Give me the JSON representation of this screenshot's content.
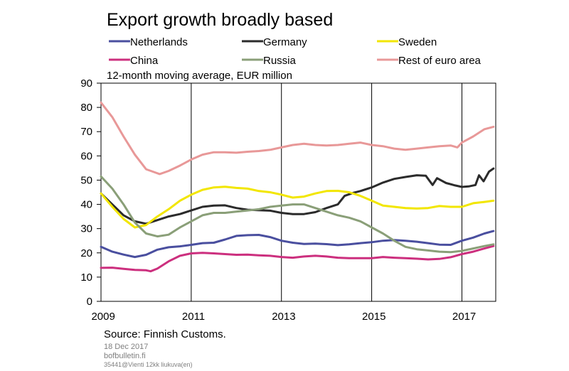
{
  "header": {
    "title": "Export growth broadly based",
    "subtitle": "12-month moving average, EUR million"
  },
  "footer": {
    "source": "Source: Finnish Customs.",
    "date": "18 Dec 2017",
    "site": "bofbulletin.fi",
    "file_id": "35441@Vienti 12kk liukuva(en)"
  },
  "chart_data": {
    "type": "line",
    "title": "Export growth broadly based",
    "subtitle": "12-month moving average, EUR million",
    "xlabel": "",
    "ylabel": "",
    "x_ticks": [
      "2009",
      "2011",
      "2013",
      "2015",
      "2017"
    ],
    "y_ticks": [
      "0",
      "10",
      "20",
      "30",
      "40",
      "50",
      "60",
      "70",
      "80",
      "90"
    ],
    "xlim": [
      2009.0,
      2017.75
    ],
    "ylim": [
      0,
      90
    ],
    "grid": "vertical",
    "legend_position": "top",
    "series": [
      {
        "name": "Netherlands",
        "color": "#4a4f9f",
        "points": [
          [
            2009.0,
            22.5
          ],
          [
            2009.25,
            20.5
          ],
          [
            2009.5,
            19.3
          ],
          [
            2009.75,
            18.3
          ],
          [
            2010.0,
            19.2
          ],
          [
            2010.25,
            21.3
          ],
          [
            2010.5,
            22.3
          ],
          [
            2010.75,
            22.7
          ],
          [
            2011.0,
            23.3
          ],
          [
            2011.25,
            24.0
          ],
          [
            2011.5,
            24.2
          ],
          [
            2011.75,
            25.5
          ],
          [
            2012.0,
            27.0
          ],
          [
            2012.25,
            27.3
          ],
          [
            2012.5,
            27.4
          ],
          [
            2012.75,
            26.5
          ],
          [
            2013.0,
            25.0
          ],
          [
            2013.25,
            24.2
          ],
          [
            2013.5,
            23.7
          ],
          [
            2013.75,
            23.8
          ],
          [
            2014.0,
            23.6
          ],
          [
            2014.25,
            23.2
          ],
          [
            2014.5,
            23.5
          ],
          [
            2014.75,
            24.0
          ],
          [
            2015.0,
            24.4
          ],
          [
            2015.25,
            25.0
          ],
          [
            2015.5,
            25.3
          ],
          [
            2015.75,
            25.0
          ],
          [
            2016.0,
            24.6
          ],
          [
            2016.25,
            24.0
          ],
          [
            2016.5,
            23.4
          ],
          [
            2016.75,
            23.3
          ],
          [
            2017.0,
            25.0
          ],
          [
            2017.25,
            26.3
          ],
          [
            2017.5,
            28.0
          ],
          [
            2017.7,
            29.0
          ]
        ]
      },
      {
        "name": "Germany",
        "color": "#2b2b2b",
        "points": [
          [
            2009.0,
            44.5
          ],
          [
            2009.25,
            40.0
          ],
          [
            2009.5,
            35.5
          ],
          [
            2009.75,
            33.0
          ],
          [
            2010.0,
            32.0
          ],
          [
            2010.25,
            33.5
          ],
          [
            2010.5,
            35.0
          ],
          [
            2010.75,
            36.0
          ],
          [
            2011.0,
            37.5
          ],
          [
            2011.25,
            39.0
          ],
          [
            2011.5,
            39.5
          ],
          [
            2011.75,
            39.6
          ],
          [
            2012.0,
            38.5
          ],
          [
            2012.25,
            37.8
          ],
          [
            2012.5,
            37.6
          ],
          [
            2012.75,
            37.4
          ],
          [
            2013.0,
            36.5
          ],
          [
            2013.25,
            36.0
          ],
          [
            2013.5,
            36.0
          ],
          [
            2013.75,
            36.8
          ],
          [
            2014.0,
            38.5
          ],
          [
            2014.25,
            40.0
          ],
          [
            2014.4,
            43.5
          ],
          [
            2014.6,
            44.8
          ],
          [
            2014.75,
            45.5
          ],
          [
            2015.0,
            47.0
          ],
          [
            2015.25,
            49.0
          ],
          [
            2015.5,
            50.5
          ],
          [
            2015.75,
            51.3
          ],
          [
            2016.0,
            52.0
          ],
          [
            2016.2,
            51.8
          ],
          [
            2016.35,
            48.0
          ],
          [
            2016.45,
            50.8
          ],
          [
            2016.65,
            48.8
          ],
          [
            2016.85,
            47.8
          ],
          [
            2017.0,
            47.2
          ],
          [
            2017.15,
            47.4
          ],
          [
            2017.3,
            48.0
          ],
          [
            2017.38,
            52.0
          ],
          [
            2017.48,
            49.5
          ],
          [
            2017.6,
            53.5
          ],
          [
            2017.7,
            54.8
          ]
        ]
      },
      {
        "name": "Sweden",
        "color": "#f2e600",
        "points": [
          [
            2009.0,
            44.5
          ],
          [
            2009.25,
            39.0
          ],
          [
            2009.5,
            34.0
          ],
          [
            2009.75,
            30.5
          ],
          [
            2010.0,
            31.5
          ],
          [
            2010.25,
            35.0
          ],
          [
            2010.5,
            38.0
          ],
          [
            2010.75,
            41.5
          ],
          [
            2011.0,
            44.0
          ],
          [
            2011.25,
            46.0
          ],
          [
            2011.5,
            47.0
          ],
          [
            2011.75,
            47.3
          ],
          [
            2012.0,
            46.8
          ],
          [
            2012.25,
            46.5
          ],
          [
            2012.5,
            45.5
          ],
          [
            2012.75,
            45.0
          ],
          [
            2013.0,
            44.0
          ],
          [
            2013.25,
            42.8
          ],
          [
            2013.5,
            43.2
          ],
          [
            2013.75,
            44.5
          ],
          [
            2014.0,
            45.5
          ],
          [
            2014.25,
            45.6
          ],
          [
            2014.5,
            45.0
          ],
          [
            2014.75,
            43.5
          ],
          [
            2015.0,
            41.5
          ],
          [
            2015.25,
            39.5
          ],
          [
            2015.5,
            39.0
          ],
          [
            2015.75,
            38.5
          ],
          [
            2016.0,
            38.3
          ],
          [
            2016.25,
            38.5
          ],
          [
            2016.5,
            39.3
          ],
          [
            2016.75,
            39.0
          ],
          [
            2017.0,
            39.0
          ],
          [
            2017.25,
            40.5
          ],
          [
            2017.5,
            41.0
          ],
          [
            2017.7,
            41.5
          ]
        ]
      },
      {
        "name": "China",
        "color": "#cc2f7e",
        "points": [
          [
            2009.0,
            13.8
          ],
          [
            2009.25,
            13.9
          ],
          [
            2009.5,
            13.4
          ],
          [
            2009.75,
            13.0
          ],
          [
            2010.0,
            12.8
          ],
          [
            2010.1,
            12.4
          ],
          [
            2010.25,
            13.5
          ],
          [
            2010.5,
            16.5
          ],
          [
            2010.75,
            18.8
          ],
          [
            2011.0,
            19.8
          ],
          [
            2011.25,
            20.0
          ],
          [
            2011.5,
            19.8
          ],
          [
            2011.75,
            19.5
          ],
          [
            2012.0,
            19.2
          ],
          [
            2012.25,
            19.3
          ],
          [
            2012.5,
            19.0
          ],
          [
            2012.75,
            18.8
          ],
          [
            2013.0,
            18.3
          ],
          [
            2013.25,
            18.0
          ],
          [
            2013.5,
            18.5
          ],
          [
            2013.75,
            18.8
          ],
          [
            2014.0,
            18.5
          ],
          [
            2014.25,
            18.0
          ],
          [
            2014.5,
            17.8
          ],
          [
            2014.75,
            17.8
          ],
          [
            2015.0,
            17.8
          ],
          [
            2015.25,
            18.3
          ],
          [
            2015.5,
            18.0
          ],
          [
            2015.75,
            17.8
          ],
          [
            2016.0,
            17.6
          ],
          [
            2016.25,
            17.3
          ],
          [
            2016.5,
            17.5
          ],
          [
            2016.75,
            18.2
          ],
          [
            2017.0,
            19.5
          ],
          [
            2017.25,
            20.5
          ],
          [
            2017.5,
            21.8
          ],
          [
            2017.7,
            22.8
          ]
        ]
      },
      {
        "name": "Russia",
        "color": "#8a9f78",
        "points": [
          [
            2009.0,
            51.5
          ],
          [
            2009.25,
            46.5
          ],
          [
            2009.5,
            40.0
          ],
          [
            2009.75,
            32.5
          ],
          [
            2010.0,
            28.0
          ],
          [
            2010.25,
            26.8
          ],
          [
            2010.5,
            27.5
          ],
          [
            2010.75,
            30.5
          ],
          [
            2011.0,
            33.0
          ],
          [
            2011.25,
            35.5
          ],
          [
            2011.5,
            36.5
          ],
          [
            2011.75,
            36.5
          ],
          [
            2012.0,
            37.0
          ],
          [
            2012.25,
            37.5
          ],
          [
            2012.5,
            38.0
          ],
          [
            2012.75,
            39.0
          ],
          [
            2013.0,
            39.5
          ],
          [
            2013.25,
            40.0
          ],
          [
            2013.5,
            40.0
          ],
          [
            2013.75,
            38.5
          ],
          [
            2014.0,
            37.0
          ],
          [
            2014.25,
            35.5
          ],
          [
            2014.5,
            34.5
          ],
          [
            2014.75,
            33.0
          ],
          [
            2015.0,
            30.5
          ],
          [
            2015.25,
            28.0
          ],
          [
            2015.5,
            25.0
          ],
          [
            2015.75,
            22.5
          ],
          [
            2016.0,
            21.5
          ],
          [
            2016.25,
            21.0
          ],
          [
            2016.5,
            20.5
          ],
          [
            2016.75,
            20.3
          ],
          [
            2017.0,
            20.8
          ],
          [
            2017.25,
            21.8
          ],
          [
            2017.5,
            22.8
          ],
          [
            2017.7,
            23.5
          ]
        ]
      },
      {
        "name": "Rest of euro area",
        "color": "#e89898",
        "points": [
          [
            2009.0,
            82.0
          ],
          [
            2009.25,
            76.0
          ],
          [
            2009.5,
            68.0
          ],
          [
            2009.75,
            60.5
          ],
          [
            2010.0,
            54.5
          ],
          [
            2010.15,
            53.5
          ],
          [
            2010.3,
            52.5
          ],
          [
            2010.5,
            53.8
          ],
          [
            2010.75,
            56.0
          ],
          [
            2011.0,
            58.5
          ],
          [
            2011.25,
            60.5
          ],
          [
            2011.5,
            61.5
          ],
          [
            2011.75,
            61.5
          ],
          [
            2012.0,
            61.3
          ],
          [
            2012.25,
            61.7
          ],
          [
            2012.5,
            62.0
          ],
          [
            2012.75,
            62.5
          ],
          [
            2013.0,
            63.5
          ],
          [
            2013.25,
            64.5
          ],
          [
            2013.5,
            65.0
          ],
          [
            2013.75,
            64.5
          ],
          [
            2014.0,
            64.3
          ],
          [
            2014.25,
            64.5
          ],
          [
            2014.5,
            65.0
          ],
          [
            2014.75,
            65.5
          ],
          [
            2015.0,
            64.5
          ],
          [
            2015.25,
            64.0
          ],
          [
            2015.5,
            63.0
          ],
          [
            2015.75,
            62.5
          ],
          [
            2016.0,
            63.0
          ],
          [
            2016.25,
            63.5
          ],
          [
            2016.5,
            64.0
          ],
          [
            2016.75,
            64.3
          ],
          [
            2016.9,
            63.5
          ],
          [
            2017.0,
            65.5
          ],
          [
            2017.25,
            68.0
          ],
          [
            2017.5,
            71.0
          ],
          [
            2017.7,
            72.0
          ]
        ]
      }
    ]
  }
}
